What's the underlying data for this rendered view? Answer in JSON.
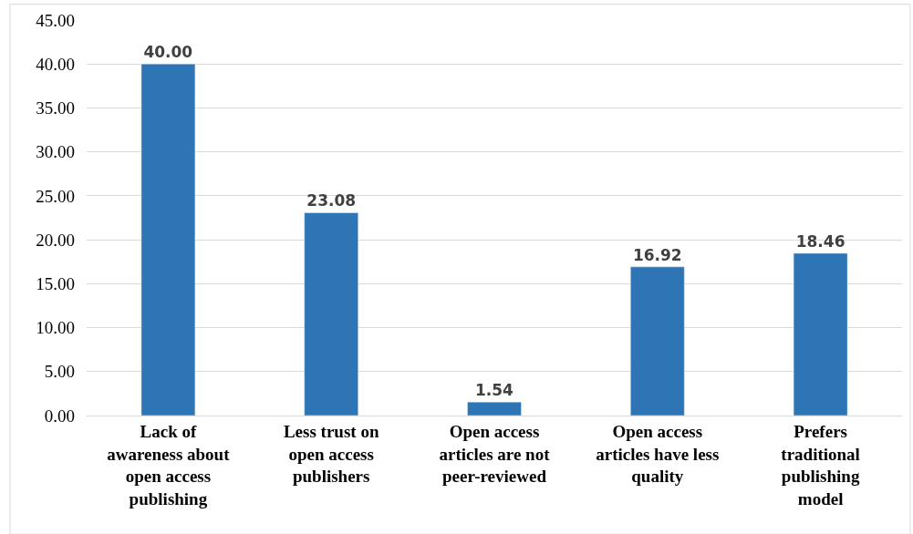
{
  "chart_data": {
    "type": "bar",
    "categories": [
      "Lack of\nawareness about\nopen access\npublishing",
      "Less trust on\nopen access\npublishers",
      "Open access\narticles are not\npeer-reviewed",
      "Open access\narticles have less\nquality",
      "Prefers\ntraditional\npublishing\nmodel"
    ],
    "values": [
      40.0,
      23.08,
      1.54,
      16.92,
      18.46
    ],
    "value_labels": [
      "40.00",
      "23.08",
      "1.54",
      "16.92",
      "18.46"
    ],
    "color": "#2e75b6",
    "ylim": [
      0,
      45
    ],
    "yticks": [
      {
        "value": 0,
        "label": "0.00"
      },
      {
        "value": 5,
        "label": "5.00"
      },
      {
        "value": 10,
        "label": "10.00"
      },
      {
        "value": 15,
        "label": "15.00"
      },
      {
        "value": 20,
        "label": "20.00"
      },
      {
        "value": 25,
        "label": "25.00"
      },
      {
        "value": 30,
        "label": "30.00"
      },
      {
        "value": 35,
        "label": "35.00"
      },
      {
        "value": 40,
        "label": "40.00"
      },
      {
        "value": 45,
        "label": "45.00"
      }
    ],
    "grid": "y"
  }
}
